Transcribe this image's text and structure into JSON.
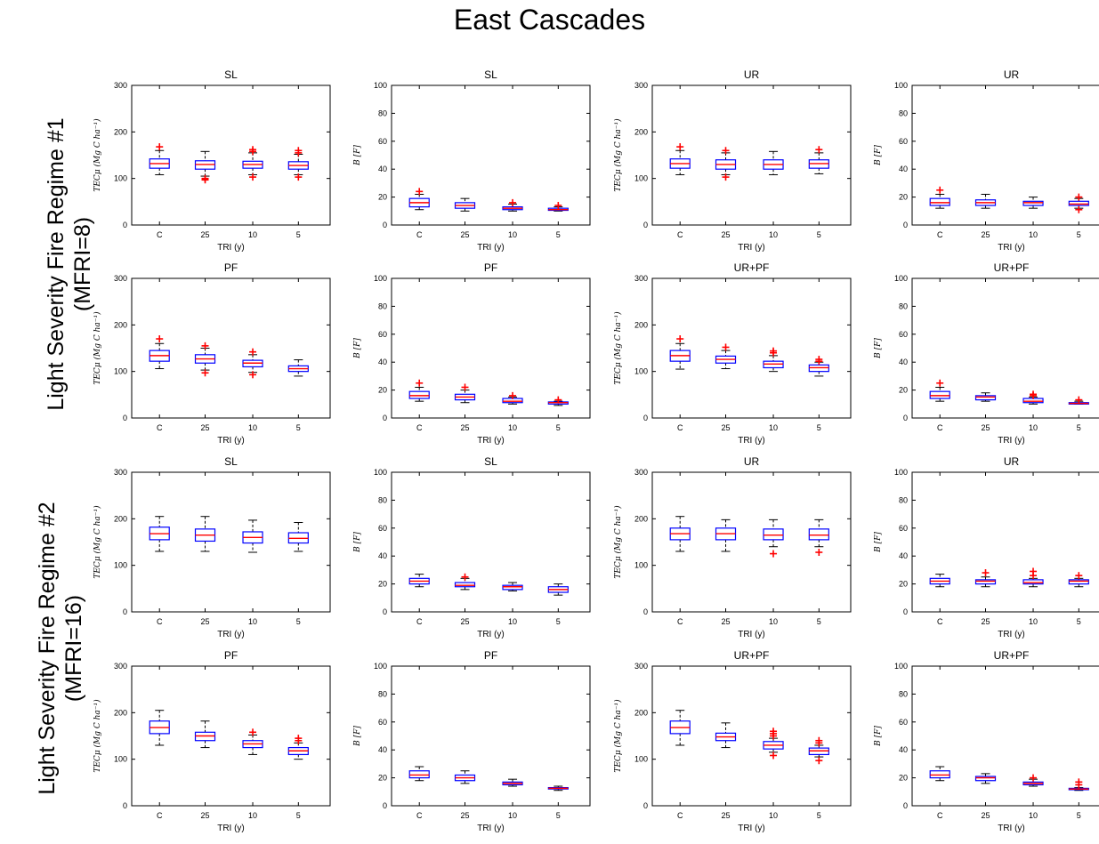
{
  "figure": {
    "title": "East Cascades",
    "row_groups": [
      {
        "line1": "Light Severity Fire Regime #1",
        "line2": "(MFRI=8)"
      },
      {
        "line1": "Light Severity Fire Regime #2",
        "line2": "(MFRI=16)"
      }
    ]
  },
  "chart_data": [
    {
      "type": "box",
      "title": "SL",
      "xlabel": "TRI (y)",
      "ylabel": "TECμ (Mg C ha⁻¹)",
      "categories": [
        "C",
        "25",
        "10",
        "5"
      ],
      "ylim": [
        0,
        300
      ],
      "yticks": [
        0,
        100,
        200,
        300
      ],
      "boxes": [
        {
          "whislo": 108,
          "q1": 122,
          "med": 132,
          "q3": 142,
          "whishi": 160,
          "outliers": [
            168
          ]
        },
        {
          "whislo": 105,
          "q1": 120,
          "med": 130,
          "q3": 138,
          "whishi": 158,
          "outliers": [
            97,
            100
          ]
        },
        {
          "whislo": 108,
          "q1": 122,
          "med": 130,
          "q3": 137,
          "whishi": 155,
          "outliers": [
            103,
            158,
            162
          ]
        },
        {
          "whislo": 108,
          "q1": 120,
          "med": 128,
          "q3": 136,
          "whishi": 152,
          "outliers": [
            103,
            155,
            160
          ]
        }
      ]
    },
    {
      "type": "box",
      "title": "SL",
      "xlabel": "TRI (y)",
      "ylabel": "B [F]",
      "categories": [
        "C",
        "25",
        "10",
        "5"
      ],
      "ylim": [
        0,
        100
      ],
      "yticks": [
        0,
        20,
        40,
        60,
        80,
        100
      ],
      "boxes": [
        {
          "whislo": 11,
          "q1": 13,
          "med": 16,
          "q3": 19,
          "whishi": 22,
          "outliers": [
            24
          ]
        },
        {
          "whislo": 10,
          "q1": 12,
          "med": 14,
          "q3": 16,
          "whishi": 19,
          "outliers": []
        },
        {
          "whislo": 10,
          "q1": 11,
          "med": 12,
          "q3": 13,
          "whishi": 15,
          "outliers": [
            16
          ]
        },
        {
          "whislo": 10,
          "q1": 10.5,
          "med": 11,
          "q3": 12,
          "whishi": 13,
          "outliers": [
            14
          ]
        }
      ]
    },
    {
      "type": "box",
      "title": "UR",
      "xlabel": "TRI (y)",
      "ylabel": "TECμ (Mg C ha⁻¹)",
      "categories": [
        "C",
        "25",
        "10",
        "5"
      ],
      "ylim": [
        0,
        300
      ],
      "yticks": [
        0,
        100,
        200,
        300
      ],
      "boxes": [
        {
          "whislo": 108,
          "q1": 122,
          "med": 132,
          "q3": 142,
          "whishi": 160,
          "outliers": [
            168
          ]
        },
        {
          "whislo": 108,
          "q1": 120,
          "med": 130,
          "q3": 140,
          "whishi": 155,
          "outliers": [
            103,
            160
          ]
        },
        {
          "whislo": 108,
          "q1": 120,
          "med": 130,
          "q3": 140,
          "whishi": 158,
          "outliers": []
        },
        {
          "whislo": 110,
          "q1": 122,
          "med": 132,
          "q3": 140,
          "whishi": 155,
          "outliers": [
            162
          ]
        }
      ]
    },
    {
      "type": "box",
      "title": "UR",
      "xlabel": "TRI (y)",
      "ylabel": "B [F]",
      "categories": [
        "C",
        "25",
        "10",
        "5"
      ],
      "ylim": [
        0,
        100
      ],
      "yticks": [
        0,
        20,
        40,
        60,
        80,
        100
      ],
      "boxes": [
        {
          "whislo": 12,
          "q1": 14,
          "med": 16,
          "q3": 19,
          "whishi": 22,
          "outliers": [
            25
          ]
        },
        {
          "whislo": 12,
          "q1": 14,
          "med": 16,
          "q3": 18,
          "whishi": 22,
          "outliers": []
        },
        {
          "whislo": 12,
          "q1": 14,
          "med": 16,
          "q3": 17,
          "whishi": 20,
          "outliers": []
        },
        {
          "whislo": 12,
          "q1": 14,
          "med": 15,
          "q3": 17,
          "whishi": 19,
          "outliers": [
            11,
            20
          ]
        }
      ]
    },
    {
      "type": "box",
      "title": "PF",
      "xlabel": "TRI (y)",
      "ylabel": "TECμ (Mg C ha⁻¹)",
      "categories": [
        "C",
        "25",
        "10",
        "5"
      ],
      "ylim": [
        0,
        300
      ],
      "yticks": [
        0,
        100,
        200,
        300
      ],
      "boxes": [
        {
          "whislo": 106,
          "q1": 122,
          "med": 134,
          "q3": 145,
          "whishi": 160,
          "outliers": [
            170
          ]
        },
        {
          "whislo": 103,
          "q1": 118,
          "med": 127,
          "q3": 136,
          "whishi": 150,
          "outliers": [
            97,
            155
          ]
        },
        {
          "whislo": 98,
          "q1": 110,
          "med": 118,
          "q3": 124,
          "whishi": 136,
          "outliers": [
            93,
            142
          ]
        },
        {
          "whislo": 90,
          "q1": 100,
          "med": 106,
          "q3": 112,
          "whishi": 125,
          "outliers": []
        }
      ]
    },
    {
      "type": "box",
      "title": "PF",
      "xlabel": "TRI (y)",
      "ylabel": "B [F]",
      "categories": [
        "C",
        "25",
        "10",
        "5"
      ],
      "ylim": [
        0,
        100
      ],
      "yticks": [
        0,
        20,
        40,
        60,
        80,
        100
      ],
      "boxes": [
        {
          "whislo": 12,
          "q1": 14,
          "med": 16,
          "q3": 19,
          "whishi": 22,
          "outliers": [
            25
          ]
        },
        {
          "whislo": 11,
          "q1": 13,
          "med": 15,
          "q3": 17,
          "whishi": 20,
          "outliers": [
            22
          ]
        },
        {
          "whislo": 10,
          "q1": 11,
          "med": 12,
          "q3": 14,
          "whishi": 15,
          "outliers": [
            16
          ]
        },
        {
          "whislo": 9,
          "q1": 10,
          "med": 11,
          "q3": 11.5,
          "whishi": 12,
          "outliers": [
            13
          ]
        }
      ]
    },
    {
      "type": "box",
      "title": "UR+PF",
      "xlabel": "TRI (y)",
      "ylabel": "TECμ (Mg C ha⁻¹)",
      "categories": [
        "C",
        "25",
        "10",
        "5"
      ],
      "ylim": [
        0,
        300
      ],
      "yticks": [
        0,
        100,
        200,
        300
      ],
      "boxes": [
        {
          "whislo": 105,
          "q1": 122,
          "med": 134,
          "q3": 145,
          "whishi": 160,
          "outliers": [
            170
          ]
        },
        {
          "whislo": 106,
          "q1": 118,
          "med": 126,
          "q3": 133,
          "whishi": 145,
          "outliers": [
            152
          ]
        },
        {
          "whislo": 100,
          "q1": 108,
          "med": 116,
          "q3": 122,
          "whishi": 134,
          "outliers": [
            140,
            144
          ]
        },
        {
          "whislo": 90,
          "q1": 100,
          "med": 108,
          "q3": 114,
          "whishi": 120,
          "outliers": [
            122,
            126
          ]
        }
      ]
    },
    {
      "type": "box",
      "title": "UR+PF",
      "xlabel": "TRI (y)",
      "ylabel": "B [F]",
      "categories": [
        "C",
        "25",
        "10",
        "5"
      ],
      "ylim": [
        0,
        100
      ],
      "yticks": [
        0,
        20,
        40,
        60,
        80,
        100
      ],
      "boxes": [
        {
          "whislo": 12,
          "q1": 14,
          "med": 16,
          "q3": 19,
          "whishi": 22,
          "outliers": [
            25
          ]
        },
        {
          "whislo": 12,
          "q1": 13,
          "med": 15,
          "q3": 16,
          "whishi": 18,
          "outliers": []
        },
        {
          "whislo": 10,
          "q1": 11,
          "med": 12,
          "q3": 14,
          "whishi": 15,
          "outliers": [
            16,
            17
          ]
        },
        {
          "whislo": 10,
          "q1": 10,
          "med": 10.5,
          "q3": 11,
          "whishi": 12,
          "outliers": [
            13
          ]
        }
      ]
    },
    {
      "type": "box",
      "title": "SL",
      "xlabel": "TRI (y)",
      "ylabel": "TECμ (Mg C ha⁻¹)",
      "categories": [
        "C",
        "25",
        "10",
        "5"
      ],
      "ylim": [
        0,
        300
      ],
      "yticks": [
        0,
        100,
        200,
        300
      ],
      "boxes": [
        {
          "whislo": 130,
          "q1": 155,
          "med": 168,
          "q3": 182,
          "whishi": 205,
          "outliers": []
        },
        {
          "whislo": 130,
          "q1": 152,
          "med": 165,
          "q3": 178,
          "whishi": 205,
          "outliers": []
        },
        {
          "whislo": 128,
          "q1": 148,
          "med": 160,
          "q3": 172,
          "whishi": 197,
          "outliers": []
        },
        {
          "whislo": 130,
          "q1": 148,
          "med": 158,
          "q3": 170,
          "whishi": 192,
          "outliers": []
        }
      ]
    },
    {
      "type": "box",
      "title": "SL",
      "xlabel": "TRI (y)",
      "ylabel": "B [F]",
      "categories": [
        "C",
        "25",
        "10",
        "5"
      ],
      "ylim": [
        0,
        100
      ],
      "yticks": [
        0,
        20,
        40,
        60,
        80,
        100
      ],
      "boxes": [
        {
          "whislo": 18,
          "q1": 20,
          "med": 22,
          "q3": 24,
          "whishi": 27,
          "outliers": []
        },
        {
          "whislo": 16,
          "q1": 18,
          "med": 19,
          "q3": 21,
          "whishi": 24,
          "outliers": [
            25
          ]
        },
        {
          "whislo": 15,
          "q1": 16,
          "med": 18,
          "q3": 19,
          "whishi": 21,
          "outliers": []
        },
        {
          "whislo": 12,
          "q1": 14,
          "med": 16,
          "q3": 18,
          "whishi": 20,
          "outliers": []
        }
      ]
    },
    {
      "type": "box",
      "title": "UR",
      "xlabel": "TRI (y)",
      "ylabel": "TECμ (Mg C ha⁻¹)",
      "categories": [
        "C",
        "25",
        "10",
        "5"
      ],
      "ylim": [
        0,
        300
      ],
      "yticks": [
        0,
        100,
        200,
        300
      ],
      "boxes": [
        {
          "whislo": 130,
          "q1": 155,
          "med": 168,
          "q3": 180,
          "whishi": 205,
          "outliers": []
        },
        {
          "whislo": 130,
          "q1": 155,
          "med": 168,
          "q3": 180,
          "whishi": 198,
          "outliers": []
        },
        {
          "whislo": 140,
          "q1": 155,
          "med": 165,
          "q3": 178,
          "whishi": 198,
          "outliers": [
            125
          ]
        },
        {
          "whislo": 140,
          "q1": 155,
          "med": 165,
          "q3": 178,
          "whishi": 198,
          "outliers": [
            128
          ]
        }
      ]
    },
    {
      "type": "box",
      "title": "UR",
      "xlabel": "TRI (y)",
      "ylabel": "B [F]",
      "categories": [
        "C",
        "25",
        "10",
        "5"
      ],
      "ylim": [
        0,
        100
      ],
      "yticks": [
        0,
        20,
        40,
        60,
        80,
        100
      ],
      "boxes": [
        {
          "whislo": 18,
          "q1": 20,
          "med": 22,
          "q3": 24,
          "whishi": 27,
          "outliers": []
        },
        {
          "whislo": 18,
          "q1": 20,
          "med": 22,
          "q3": 23,
          "whishi": 25,
          "outliers": [
            28
          ]
        },
        {
          "whislo": 18,
          "q1": 20,
          "med": 21,
          "q3": 23,
          "whishi": 24,
          "outliers": [
            26,
            29
          ]
        },
        {
          "whislo": 18,
          "q1": 20,
          "med": 22,
          "q3": 23,
          "whishi": 24,
          "outliers": [
            26
          ]
        }
      ]
    },
    {
      "type": "box",
      "title": "PF",
      "xlabel": "TRI (y)",
      "ylabel": "TECμ (Mg C ha⁻¹)",
      "categories": [
        "C",
        "25",
        "10",
        "5"
      ],
      "ylim": [
        0,
        300
      ],
      "yticks": [
        0,
        100,
        200,
        300
      ],
      "boxes": [
        {
          "whislo": 130,
          "q1": 155,
          "med": 168,
          "q3": 182,
          "whishi": 205,
          "outliers": []
        },
        {
          "whislo": 125,
          "q1": 140,
          "med": 150,
          "q3": 158,
          "whishi": 182,
          "outliers": []
        },
        {
          "whislo": 110,
          "q1": 125,
          "med": 133,
          "q3": 140,
          "whishi": 152,
          "outliers": [
            158
          ]
        },
        {
          "whislo": 100,
          "q1": 110,
          "med": 118,
          "q3": 125,
          "whishi": 135,
          "outliers": [
            140,
            145
          ]
        }
      ]
    },
    {
      "type": "box",
      "title": "PF",
      "xlabel": "TRI (y)",
      "ylabel": "B [F]",
      "categories": [
        "C",
        "25",
        "10",
        "5"
      ],
      "ylim": [
        0,
        100
      ],
      "yticks": [
        0,
        20,
        40,
        60,
        80,
        100
      ],
      "boxes": [
        {
          "whislo": 18,
          "q1": 20,
          "med": 22,
          "q3": 25,
          "whishi": 28,
          "outliers": []
        },
        {
          "whislo": 16,
          "q1": 18,
          "med": 20,
          "q3": 22,
          "whishi": 25,
          "outliers": []
        },
        {
          "whislo": 14,
          "q1": 15,
          "med": 16,
          "q3": 17,
          "whishi": 19,
          "outliers": []
        },
        {
          "whislo": 11,
          "q1": 12,
          "med": 12.5,
          "q3": 13,
          "whishi": 14,
          "outliers": []
        }
      ]
    },
    {
      "type": "box",
      "title": "UR+PF",
      "xlabel": "TRI (y)",
      "ylabel": "TECμ (Mg C ha⁻¹)",
      "categories": [
        "C",
        "25",
        "10",
        "5"
      ],
      "ylim": [
        0,
        300
      ],
      "yticks": [
        0,
        100,
        200,
        300
      ],
      "boxes": [
        {
          "whislo": 130,
          "q1": 155,
          "med": 168,
          "q3": 182,
          "whishi": 205,
          "outliers": []
        },
        {
          "whislo": 125,
          "q1": 140,
          "med": 148,
          "q3": 156,
          "whishi": 178,
          "outliers": []
        },
        {
          "whislo": 115,
          "q1": 122,
          "med": 130,
          "q3": 138,
          "whishi": 145,
          "outliers": [
            108,
            150,
            155,
            160
          ]
        },
        {
          "whislo": 105,
          "q1": 110,
          "med": 118,
          "q3": 124,
          "whishi": 130,
          "outliers": [
            97,
            135,
            140
          ]
        }
      ]
    },
    {
      "type": "box",
      "title": "UR+PF",
      "xlabel": "TRI (y)",
      "ylabel": "B [F]",
      "categories": [
        "C",
        "25",
        "10",
        "5"
      ],
      "ylim": [
        0,
        100
      ],
      "yticks": [
        0,
        20,
        40,
        60,
        80,
        100
      ],
      "boxes": [
        {
          "whislo": 18,
          "q1": 20,
          "med": 22,
          "q3": 25,
          "whishi": 28,
          "outliers": []
        },
        {
          "whislo": 16,
          "q1": 18,
          "med": 20,
          "q3": 21,
          "whishi": 23,
          "outliers": []
        },
        {
          "whislo": 14,
          "q1": 15,
          "med": 16,
          "q3": 17,
          "whishi": 19,
          "outliers": [
            20
          ]
        },
        {
          "whislo": 11,
          "q1": 11.5,
          "med": 12,
          "q3": 12.5,
          "whishi": 13,
          "outliers": [
            15,
            17
          ]
        }
      ]
    }
  ]
}
